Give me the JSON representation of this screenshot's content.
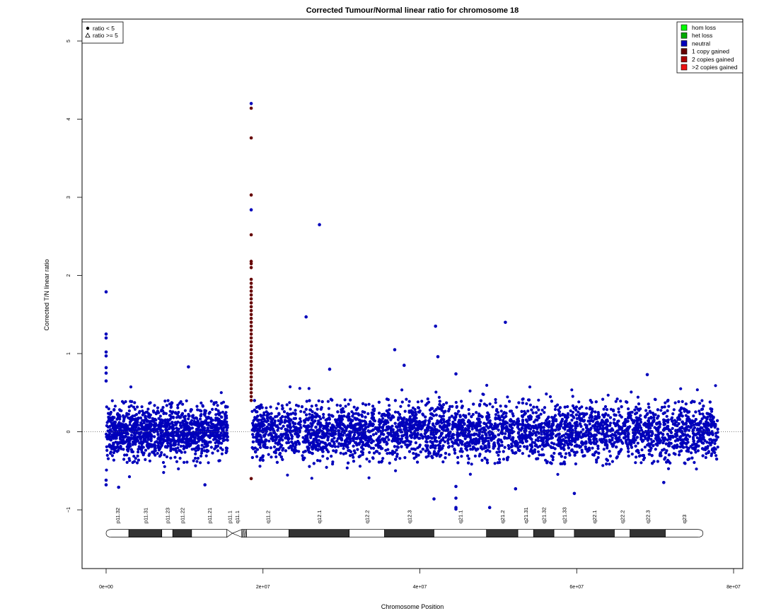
{
  "chart_data": {
    "type": "scatter",
    "title": "Corrected Tumour/Normal linear ratio for chromosome  18",
    "xlabel": "Chromosome Position",
    "ylabel": "Corrected T/N linear ratio",
    "xlim": [
      0,
      80000000
    ],
    "ylim": [
      -1.8,
      5.3
    ],
    "x_ticks": [
      0,
      20000000,
      40000000,
      60000000,
      80000000
    ],
    "x_tick_labels": [
      "0e+00",
      "2e+07",
      "4e+07",
      "6e+07",
      "8e+07"
    ],
    "y_ticks": [
      -1,
      0,
      1,
      2,
      3,
      4,
      5
    ],
    "y_tick_labels": [
      "−1",
      "0",
      "1",
      "2",
      "3",
      "4",
      "5"
    ],
    "reference_line_y": 0,
    "shape_legend": {
      "position": "top-left",
      "items": [
        {
          "label": "ratio < 5",
          "shape": "filled-circle"
        },
        {
          "label": "ratio >= 5",
          "shape": "open-triangle"
        }
      ]
    },
    "color_legend": {
      "position": "top-right",
      "items": [
        {
          "label": "hom loss",
          "color": "#00ff00"
        },
        {
          "label": "het loss",
          "color": "#00aa00"
        },
        {
          "label": "neutral",
          "color": "#0000bb"
        },
        {
          "label": "1 copy gained",
          "color": "#660000"
        },
        {
          "label": "2 copies gained",
          "color": "#aa0000"
        },
        {
          "label": ">2 copies gained",
          "color": "#ee1111"
        }
      ]
    },
    "segments": [
      {
        "name": "neutral",
        "x_start": 0,
        "x_end": 15500000,
        "center": 0.0,
        "spread": 0.38,
        "color": "#0000bb"
      },
      {
        "name": "neutral",
        "x_start": 18600000,
        "x_end": 78000000,
        "center": 0.0,
        "spread": 0.4,
        "color": "#0000bb"
      }
    ],
    "outliers": [
      {
        "x": 0,
        "y": 1.79,
        "color": "#0000bb"
      },
      {
        "x": 0,
        "y": 1.25,
        "color": "#0000bb"
      },
      {
        "x": 0,
        "y": 1.2,
        "color": "#0000bb"
      },
      {
        "x": 0,
        "y": 1.02,
        "color": "#0000bb"
      },
      {
        "x": 0,
        "y": 0.97,
        "color": "#0000bb"
      },
      {
        "x": 0,
        "y": 0.82,
        "color": "#0000bb"
      },
      {
        "x": 0,
        "y": 0.75,
        "color": "#0000bb"
      },
      {
        "x": 0,
        "y": 0.65,
        "color": "#0000bb"
      },
      {
        "x": 0,
        "y": -0.68,
        "color": "#0000bb"
      },
      {
        "x": 0,
        "y": -0.62,
        "color": "#0000bb"
      },
      {
        "x": 1600000,
        "y": -0.71,
        "color": "#0000bb"
      },
      {
        "x": 10500000,
        "y": 0.83,
        "color": "#0000bb"
      },
      {
        "x": 12600000,
        "y": -0.68,
        "color": "#0000bb"
      },
      {
        "x": 18500000,
        "y": 4.2,
        "color": "#0000bb"
      },
      {
        "x": 18500000,
        "y": 4.14,
        "color": "#660000"
      },
      {
        "x": 18500000,
        "y": 3.76,
        "color": "#660000"
      },
      {
        "x": 18500000,
        "y": 3.03,
        "color": "#660000"
      },
      {
        "x": 18500000,
        "y": 2.84,
        "color": "#0000bb"
      },
      {
        "x": 18500000,
        "y": 2.52,
        "color": "#660000"
      },
      {
        "x": 18500000,
        "y": 2.18,
        "color": "#660000"
      },
      {
        "x": 18500000,
        "y": 2.15,
        "color": "#660000"
      },
      {
        "x": 18500000,
        "y": 2.1,
        "color": "#660000"
      },
      {
        "x": 18500000,
        "y": 1.95,
        "color": "#660000"
      },
      {
        "x": 18500000,
        "y": 1.9,
        "color": "#660000"
      },
      {
        "x": 18500000,
        "y": 1.85,
        "color": "#660000"
      },
      {
        "x": 18500000,
        "y": 1.8,
        "color": "#660000"
      },
      {
        "x": 18500000,
        "y": 1.75,
        "color": "#660000"
      },
      {
        "x": 18500000,
        "y": 1.7,
        "color": "#660000"
      },
      {
        "x": 18500000,
        "y": 1.65,
        "color": "#660000"
      },
      {
        "x": 18500000,
        "y": 1.6,
        "color": "#660000"
      },
      {
        "x": 18500000,
        "y": 1.55,
        "color": "#660000"
      },
      {
        "x": 18500000,
        "y": 1.5,
        "color": "#660000"
      },
      {
        "x": 18500000,
        "y": 1.45,
        "color": "#660000"
      },
      {
        "x": 18500000,
        "y": 1.4,
        "color": "#660000"
      },
      {
        "x": 18500000,
        "y": 1.35,
        "color": "#660000"
      },
      {
        "x": 18500000,
        "y": 1.3,
        "color": "#660000"
      },
      {
        "x": 18500000,
        "y": 1.25,
        "color": "#660000"
      },
      {
        "x": 18500000,
        "y": 1.2,
        "color": "#660000"
      },
      {
        "x": 18500000,
        "y": 1.15,
        "color": "#660000"
      },
      {
        "x": 18500000,
        "y": 1.1,
        "color": "#660000"
      },
      {
        "x": 18500000,
        "y": 1.05,
        "color": "#660000"
      },
      {
        "x": 18500000,
        "y": 1.0,
        "color": "#660000"
      },
      {
        "x": 18500000,
        "y": 0.95,
        "color": "#660000"
      },
      {
        "x": 18500000,
        "y": 0.9,
        "color": "#660000"
      },
      {
        "x": 18500000,
        "y": 0.85,
        "color": "#660000"
      },
      {
        "x": 18500000,
        "y": 0.8,
        "color": "#660000"
      },
      {
        "x": 18500000,
        "y": 0.75,
        "color": "#660000"
      },
      {
        "x": 18500000,
        "y": 0.7,
        "color": "#660000"
      },
      {
        "x": 18500000,
        "y": 0.65,
        "color": "#660000"
      },
      {
        "x": 18500000,
        "y": 0.6,
        "color": "#660000"
      },
      {
        "x": 18500000,
        "y": 0.55,
        "color": "#660000"
      },
      {
        "x": 18500000,
        "y": 0.5,
        "color": "#660000"
      },
      {
        "x": 18500000,
        "y": 0.45,
        "color": "#660000"
      },
      {
        "x": 18500000,
        "y": 0.4,
        "color": "#660000"
      },
      {
        "x": 18500000,
        "y": -0.6,
        "color": "#660000"
      },
      {
        "x": 25500000,
        "y": 1.47,
        "color": "#0000bb"
      },
      {
        "x": 27200000,
        "y": 2.65,
        "color": "#0000bb"
      },
      {
        "x": 28500000,
        "y": 0.8,
        "color": "#0000bb"
      },
      {
        "x": 36800000,
        "y": 1.05,
        "color": "#0000bb"
      },
      {
        "x": 38000000,
        "y": 0.85,
        "color": "#0000bb"
      },
      {
        "x": 42000000,
        "y": 1.35,
        "color": "#0000bb"
      },
      {
        "x": 42300000,
        "y": 0.96,
        "color": "#0000bb"
      },
      {
        "x": 44600000,
        "y": 0.74,
        "color": "#0000bb"
      },
      {
        "x": 44600000,
        "y": -0.7,
        "color": "#0000bb"
      },
      {
        "x": 44600000,
        "y": -0.85,
        "color": "#0000bb"
      },
      {
        "x": 44600000,
        "y": -0.97,
        "color": "#0000bb"
      },
      {
        "x": 44600000,
        "y": -0.99,
        "color": "#0000bb"
      },
      {
        "x": 41800000,
        "y": -0.86,
        "color": "#0000bb"
      },
      {
        "x": 48900000,
        "y": -0.97,
        "color": "#0000bb"
      },
      {
        "x": 50900000,
        "y": 1.4,
        "color": "#0000bb"
      },
      {
        "x": 52200000,
        "y": -0.73,
        "color": "#0000bb"
      },
      {
        "x": 59700000,
        "y": -0.79,
        "color": "#0000bb"
      },
      {
        "x": 69000000,
        "y": 0.73,
        "color": "#0000bb"
      },
      {
        "x": 71100000,
        "y": -0.65,
        "color": "#0000bb"
      }
    ],
    "ideogram": {
      "y": -1.3,
      "bands": [
        {
          "name": "p11.32",
          "start": 0,
          "end": 2900000,
          "fill": "#ffffff"
        },
        {
          "name": "p11.31",
          "start": 2900000,
          "end": 7100000,
          "fill": "#333333"
        },
        {
          "name": "p11.23",
          "start": 7100000,
          "end": 8500000,
          "fill": "#ffffff"
        },
        {
          "name": "p11.22",
          "start": 8500000,
          "end": 10900000,
          "fill": "#333333"
        },
        {
          "name": "p11.21",
          "start": 10900000,
          "end": 15400000,
          "fill": "#ffffff"
        },
        {
          "name": "p11.1",
          "start": 15400000,
          "end": 16100000,
          "fill": "centromere"
        },
        {
          "name": "q11.1",
          "start": 16100000,
          "end": 17300000,
          "fill": "centromere"
        },
        {
          "name": "",
          "start": 17300000,
          "end": 17900000,
          "fill": "stalk"
        },
        {
          "name": "q11.2",
          "start": 17900000,
          "end": 23300000,
          "fill": "#ffffff"
        },
        {
          "name": "q12.1",
          "start": 23300000,
          "end": 31000000,
          "fill": "#333333"
        },
        {
          "name": "q12.2",
          "start": 31000000,
          "end": 35500000,
          "fill": "#ffffff"
        },
        {
          "name": "q12.3",
          "start": 35500000,
          "end": 41800000,
          "fill": "#333333"
        },
        {
          "name": "q21.1",
          "start": 41800000,
          "end": 48500000,
          "fill": "#ffffff"
        },
        {
          "name": "q21.2",
          "start": 48500000,
          "end": 52500000,
          "fill": "#333333"
        },
        {
          "name": "q21.31",
          "start": 52500000,
          "end": 54500000,
          "fill": "#ffffff"
        },
        {
          "name": "q21.32",
          "start": 54500000,
          "end": 57100000,
          "fill": "#333333"
        },
        {
          "name": "q21.33",
          "start": 57100000,
          "end": 59700000,
          "fill": "#ffffff"
        },
        {
          "name": "q22.1",
          "start": 59700000,
          "end": 64800000,
          "fill": "#333333"
        },
        {
          "name": "q22.2",
          "start": 64800000,
          "end": 66800000,
          "fill": "#ffffff"
        },
        {
          "name": "q22.3",
          "start": 66800000,
          "end": 71300000,
          "fill": "#333333"
        },
        {
          "name": "q23",
          "start": 71300000,
          "end": 76100000,
          "fill": "#ffffff"
        }
      ]
    }
  }
}
